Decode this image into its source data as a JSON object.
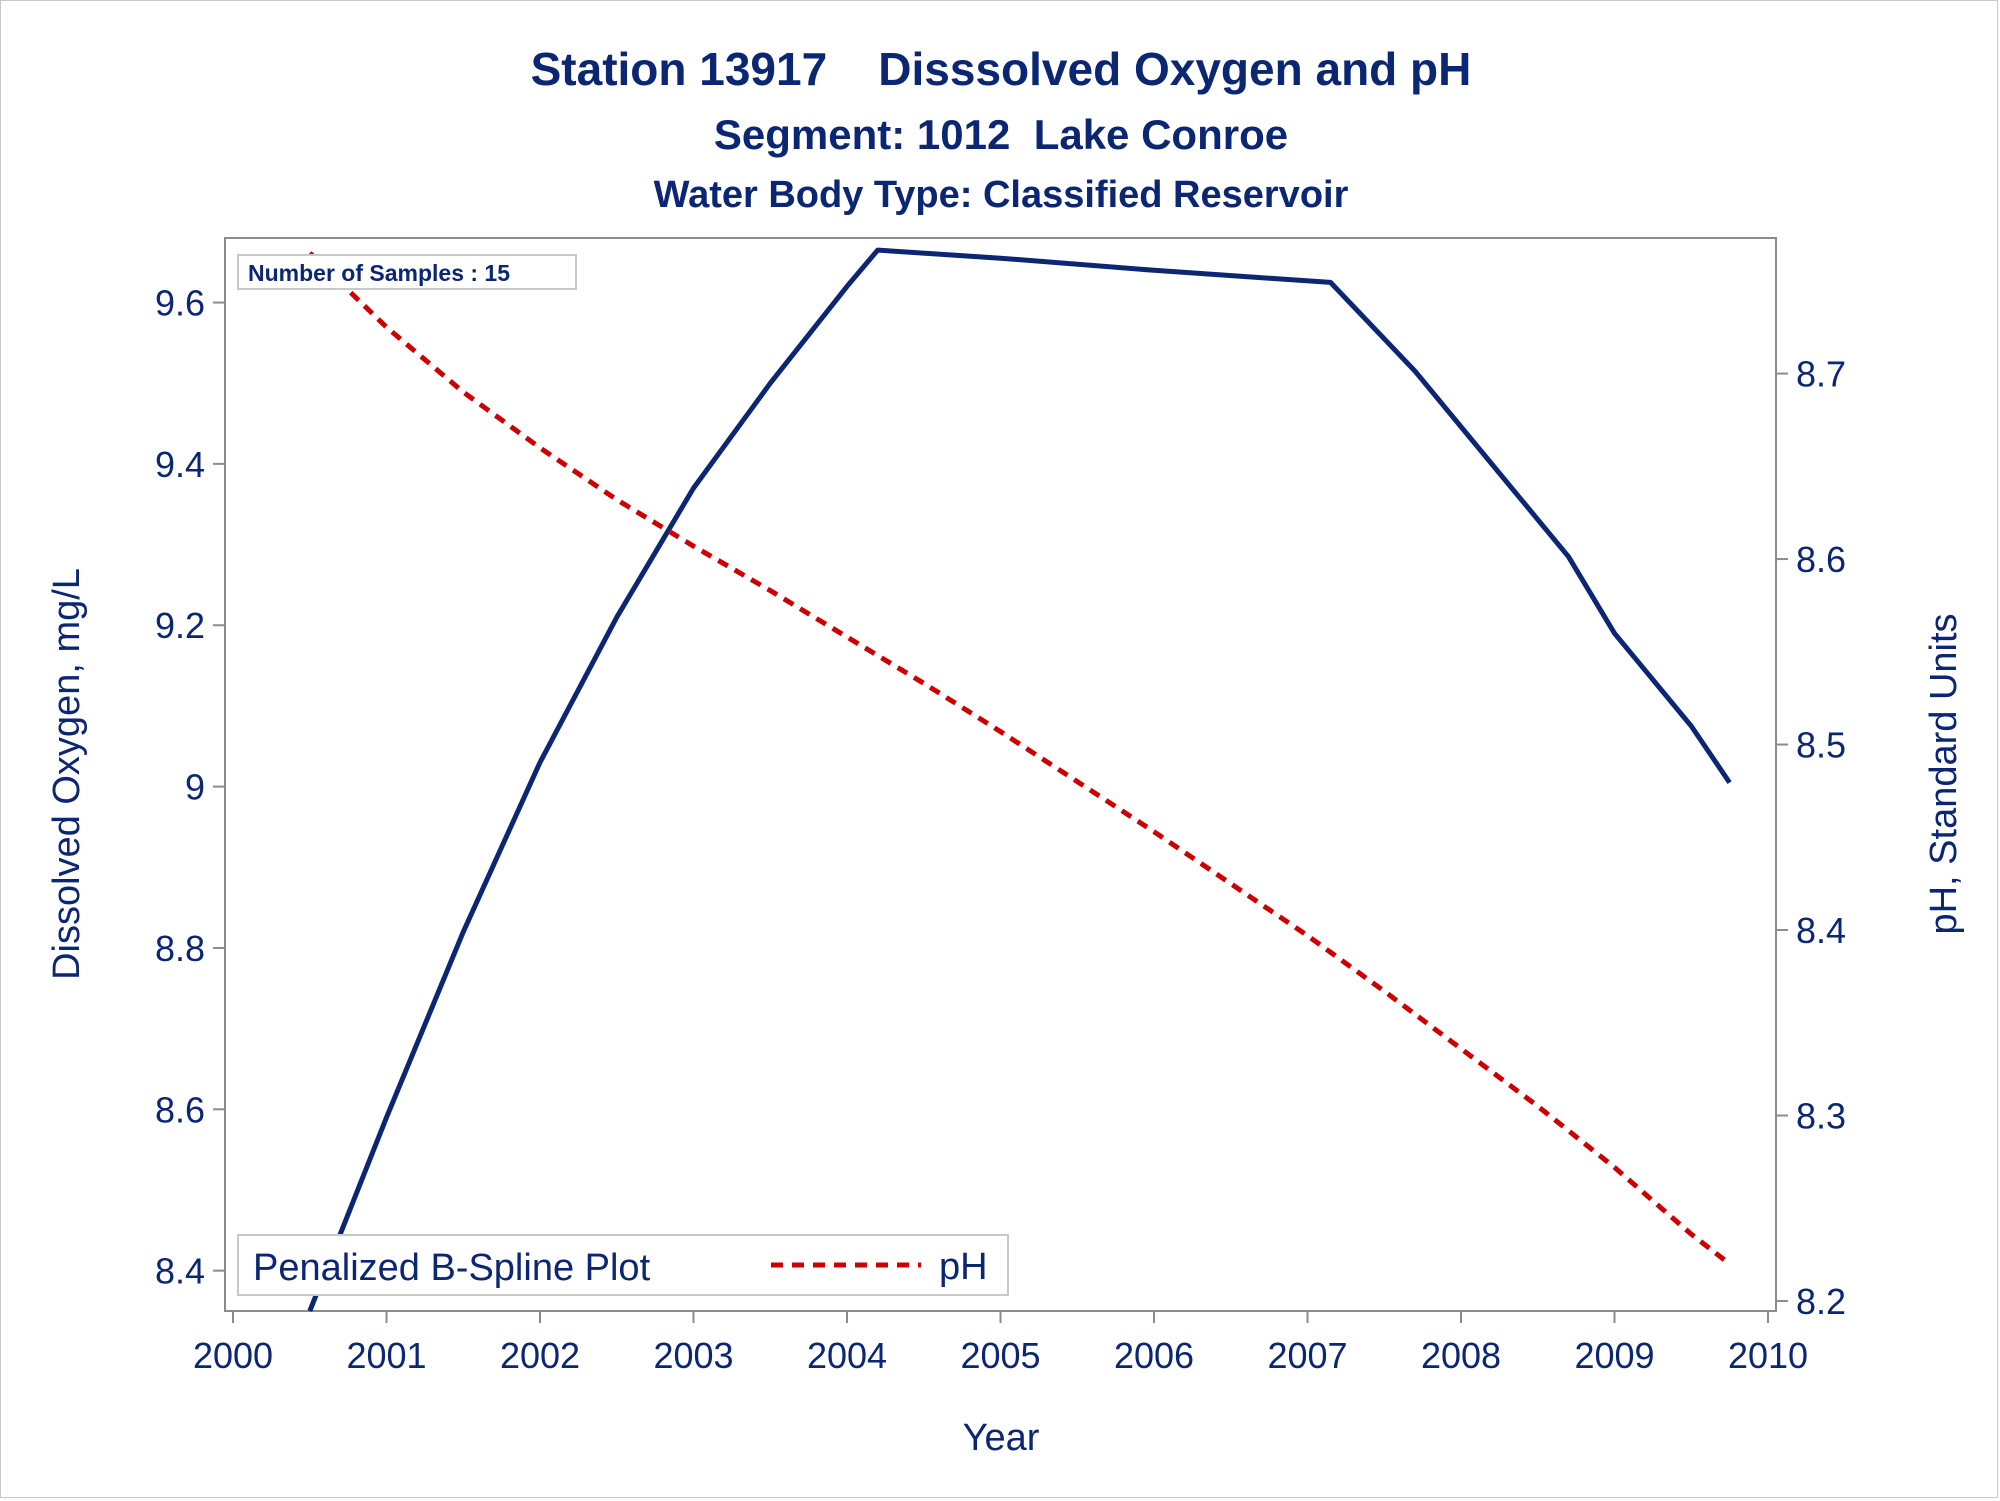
{
  "chart_data": {
    "type": "line",
    "title": "Station 13917    Disssolved Oxygen and pH",
    "subtitle": "Segment: 1012  Lake Conroe",
    "subtitle2": "Water Body Type: Classified Reservoir",
    "xlabel": "Year",
    "ylabel": "Dissolved Oxygen, mg/L",
    "y2label": "pH, Standard Units",
    "xlim": [
      2000,
      2010
    ],
    "ylim": [
      8.35,
      9.68
    ],
    "y2lim": [
      8.2,
      8.765
    ],
    "xticks": [
      "2000",
      "2001",
      "2002",
      "2003",
      "2004",
      "2005",
      "2006",
      "2007",
      "2008",
      "2009",
      "2010"
    ],
    "yticks": [
      "8.4",
      "8.6",
      "8.8",
      "9",
      "9.2",
      "9.4",
      "9.6"
    ],
    "y2ticks": [
      "8.2",
      "8.3",
      "8.4",
      "8.5",
      "8.6",
      "8.7"
    ],
    "inset_label": "Number of Samples : 15",
    "legend_title": "Penalized B-Spline Plot",
    "legend_placement": "bottom-left",
    "grid": false,
    "colors": {
      "do": "#0b2672",
      "ph": "#cc0000",
      "axis": "#8c8c8c",
      "text": "#0b2672"
    },
    "series": [
      {
        "axis": "left",
        "color": "#0b2672",
        "style": "solid",
        "x": [
          2000.5,
          2001.0,
          2001.5,
          2002.0,
          2002.5,
          2003.0,
          2003.5,
          2004.0,
          2004.2,
          2005.0,
          2006.0,
          2007.15,
          2007.7,
          2008.2,
          2008.7,
          2009.0,
          2009.5,
          2009.75
        ],
        "y": [
          8.35,
          8.59,
          8.82,
          9.03,
          9.21,
          9.37,
          9.5,
          9.62,
          9.665,
          9.655,
          9.64,
          9.625,
          9.515,
          9.4,
          9.285,
          9.19,
          9.075,
          9.005
        ]
      },
      {
        "axis": "right",
        "name": "pH",
        "color": "#cc0000",
        "style": "dashed",
        "x": [
          2000.5,
          2001.0,
          2001.5,
          2002.0,
          2002.5,
          2003.0,
          2003.5,
          2004.0,
          2004.5,
          2005.0,
          2005.5,
          2006.0,
          2006.5,
          2007.0,
          2007.5,
          2008.0,
          2008.5,
          2009.0,
          2009.5,
          2009.75
        ],
        "y": [
          8.765,
          8.725,
          8.69,
          8.66,
          8.632,
          8.607,
          8.583,
          8.558,
          8.533,
          8.507,
          8.48,
          8.453,
          8.425,
          8.397,
          8.367,
          8.336,
          8.305,
          8.272,
          8.236,
          8.22
        ]
      }
    ]
  }
}
